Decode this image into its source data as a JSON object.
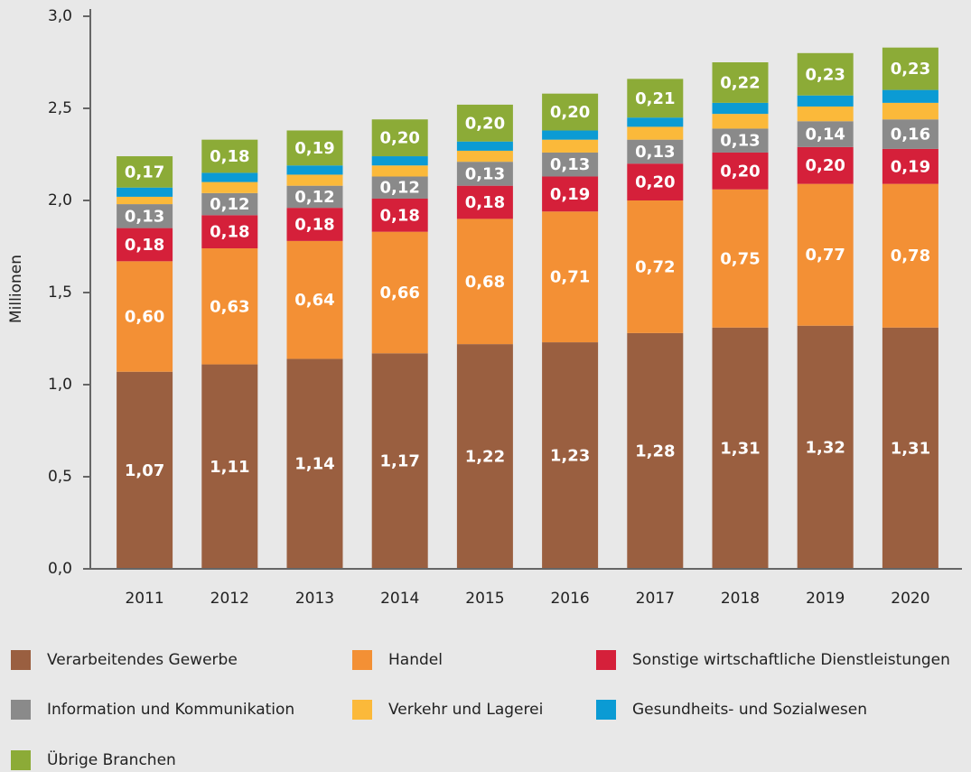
{
  "chart_data": {
    "type": "stacked_bar",
    "ylabel": "Millionen",
    "categories": [
      "2011",
      "2012",
      "2013",
      "2014",
      "2015",
      "2016",
      "2017",
      "2018",
      "2019",
      "2020"
    ],
    "ylim": [
      0,
      3
    ],
    "yticks": [
      {
        "value": 0,
        "label": "0,0"
      },
      {
        "value": 0.5,
        "label": "0,5"
      },
      {
        "value": 1,
        "label": "1,0"
      },
      {
        "value": 1.5,
        "label": "1,5"
      },
      {
        "value": 2,
        "label": "2,0"
      },
      {
        "value": 2.5,
        "label": "2,5"
      },
      {
        "value": 3,
        "label": "3,0"
      }
    ],
    "series": [
      {
        "name": "Verarbeitendes Gewerbe",
        "color": "#9a5f40",
        "values": [
          1.07,
          1.11,
          1.14,
          1.17,
          1.22,
          1.23,
          1.28,
          1.31,
          1.32,
          1.31
        ],
        "value_labels": [
          "1,07",
          "1,11",
          "1,14",
          "1,17",
          "1,22",
          "1,23",
          "1,28",
          "1,31",
          "1,32",
          "1,31"
        ]
      },
      {
        "name": "Handel",
        "color": "#f39035",
        "values": [
          0.6,
          0.63,
          0.64,
          0.66,
          0.68,
          0.71,
          0.72,
          0.75,
          0.77,
          0.78
        ],
        "value_labels": [
          "0,60",
          "0,63",
          "0,64",
          "0,66",
          "0,68",
          "0,71",
          "0,72",
          "0,75",
          "0,77",
          "0,78"
        ]
      },
      {
        "name": "Sonstige wirtschaftliche Dienstleistungen",
        "color": "#d5203a",
        "values": [
          0.18,
          0.18,
          0.18,
          0.18,
          0.18,
          0.19,
          0.2,
          0.2,
          0.2,
          0.19
        ],
        "value_labels": [
          "0,18",
          "0,18",
          "0,18",
          "0,18",
          "0,18",
          "0,19",
          "0,20",
          "0,20",
          "0,20",
          "0,19"
        ]
      },
      {
        "name": "Information und Kommunikation",
        "color": "#8a8a8a",
        "values": [
          0.13,
          0.12,
          0.12,
          0.12,
          0.13,
          0.13,
          0.13,
          0.13,
          0.14,
          0.16
        ],
        "value_labels": [
          "0,13",
          "0,12",
          "0,12",
          "0,12",
          "0,13",
          "0,13",
          "0,13",
          "0,13",
          "0,14",
          "0,16"
        ]
      },
      {
        "name": "Verkehr und Lagerei",
        "color": "#fbb93a",
        "values": [
          0.04,
          0.06,
          0.06,
          0.06,
          0.06,
          0.07,
          0.07,
          0.08,
          0.08,
          0.09
        ]
      },
      {
        "name": "Gesundheits- und Sozialwesen",
        "color": "#0b9bd4",
        "values": [
          0.05,
          0.05,
          0.05,
          0.05,
          0.05,
          0.05,
          0.05,
          0.06,
          0.06,
          0.07
        ]
      },
      {
        "name": "Übrige Branchen",
        "color": "#8cab37",
        "values": [
          0.17,
          0.18,
          0.19,
          0.2,
          0.2,
          0.2,
          0.21,
          0.22,
          0.23,
          0.23
        ],
        "value_labels": [
          "0,17",
          "0,18",
          "0,19",
          "0,20",
          "0,20",
          "0,20",
          "0,21",
          "0,22",
          "0,23",
          "0,23"
        ]
      }
    ]
  }
}
